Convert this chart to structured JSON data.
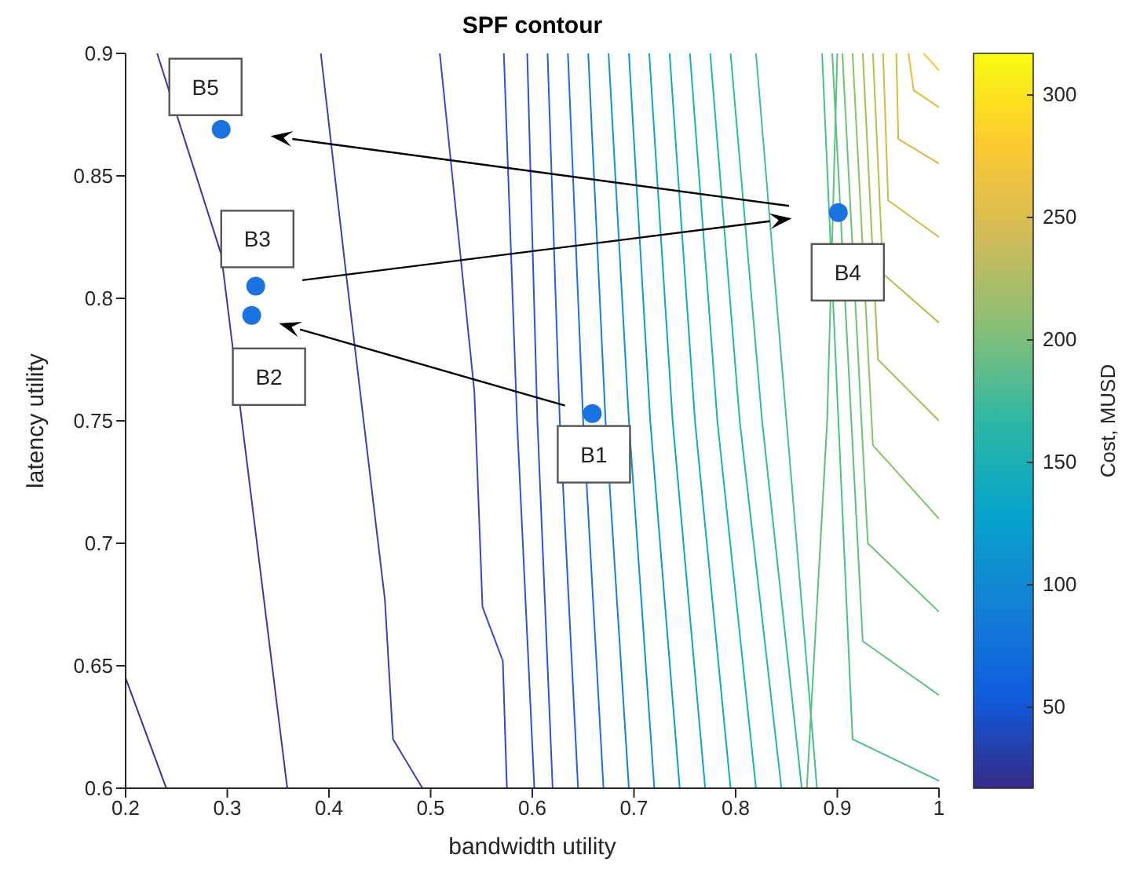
{
  "chart_data": {
    "type": "scatter",
    "title": "SPF contour",
    "xlabel": "bandwidth utility",
    "ylabel": "latency utility",
    "clabel": "Cost, MUSD",
    "xlim": [
      0.2,
      1
    ],
    "ylim": [
      0.6,
      0.9
    ],
    "xticks": [
      0.2,
      0.3,
      0.4,
      0.5,
      0.6,
      0.7,
      0.8,
      0.9,
      1
    ],
    "yticks": [
      0.6,
      0.65,
      0.7,
      0.75,
      0.8,
      0.85,
      0.9
    ],
    "clim": [
      17,
      317
    ],
    "cticks": [
      50,
      100,
      150,
      200,
      250,
      300
    ],
    "series": [
      {
        "type": "line",
        "color": "#3b2f96",
        "x": [
          0.2,
          0.24
        ],
        "values": [
          0.645,
          0.6
        ]
      },
      {
        "type": "line",
        "color": "#3d35a8",
        "x": [
          0.231,
          0.294,
          0.359
        ],
        "values": [
          0.9,
          0.818,
          0.6
        ]
      },
      {
        "type": "line",
        "color": "#3b3fb8",
        "x": [
          0.392,
          0.416,
          0.455,
          0.463,
          0.492
        ],
        "values": [
          0.9,
          0.813,
          0.677,
          0.62,
          0.6
        ]
      },
      {
        "type": "line",
        "color": "#3448cc",
        "x": [
          0.509,
          0.543,
          0.551,
          0.571,
          0.575
        ],
        "values": [
          0.9,
          0.762,
          0.674,
          0.652,
          0.6
        ]
      },
      {
        "type": "line",
        "color": "#2c50dc",
        "x": [
          0.572,
          0.585,
          0.602
        ],
        "values": [
          0.9,
          0.75,
          0.6
        ]
      },
      {
        "type": "line",
        "color": "#2852e0",
        "x": [
          0.595,
          0.605,
          0.62
        ],
        "values": [
          0.9,
          0.75,
          0.6
        ]
      },
      {
        "type": "line",
        "color": "#1f62e6",
        "x": [
          0.615,
          0.627,
          0.645
        ],
        "values": [
          0.9,
          0.75,
          0.6
        ]
      },
      {
        "type": "line",
        "color": "#1a70e4",
        "x": [
          0.635,
          0.65,
          0.67
        ],
        "values": [
          0.9,
          0.75,
          0.6
        ]
      },
      {
        "type": "line",
        "color": "#1580dc",
        "x": [
          0.655,
          0.672,
          0.695
        ],
        "values": [
          0.9,
          0.75,
          0.6
        ]
      },
      {
        "type": "line",
        "color": "#118ed6",
        "x": [
          0.675,
          0.695,
          0.72
        ],
        "values": [
          0.9,
          0.75,
          0.6
        ]
      },
      {
        "type": "line",
        "color": "#0d9ad0",
        "x": [
          0.695,
          0.716,
          0.745
        ],
        "values": [
          0.9,
          0.75,
          0.6
        ]
      },
      {
        "type": "line",
        "color": "#0aa5c8",
        "x": [
          0.715,
          0.738,
          0.77
        ],
        "values": [
          0.9,
          0.75,
          0.6
        ]
      },
      {
        "type": "line",
        "color": "#0cadbc",
        "x": [
          0.735,
          0.76,
          0.795
        ],
        "values": [
          0.9,
          0.75,
          0.6
        ]
      },
      {
        "type": "line",
        "color": "#14b4b0",
        "x": [
          0.755,
          0.782,
          0.82
        ],
        "values": [
          0.9,
          0.75,
          0.6
        ]
      },
      {
        "type": "line",
        "color": "#22b9a4",
        "x": [
          0.775,
          0.804,
          0.845
        ],
        "values": [
          0.9,
          0.75,
          0.6
        ]
      },
      {
        "type": "line",
        "color": "#30bc98",
        "x": [
          0.795,
          0.826,
          0.865
        ],
        "values": [
          0.9,
          0.75,
          0.6
        ]
      },
      {
        "type": "line",
        "color": "#40bf8c",
        "x": [
          0.82,
          0.85,
          0.88
        ],
        "values": [
          0.9,
          0.75,
          0.6
        ]
      },
      {
        "type": "line",
        "color": "#5ac27a",
        "x": [
          0.9,
          0.89,
          0.87
        ],
        "values": [
          0.9,
          0.75,
          0.6
        ]
      },
      {
        "type": "line",
        "color": "#48c184",
        "x": [
          0.885,
          0.915,
          1
        ],
        "values": [
          0.9,
          0.62,
          0.603
        ]
      },
      {
        "type": "line",
        "color": "#5ac27a",
        "x": [
          0.895,
          0.925,
          1
        ],
        "values": [
          0.9,
          0.66,
          0.638
        ]
      },
      {
        "type": "line",
        "color": "#6cc46e",
        "x": [
          0.905,
          0.93,
          1
        ],
        "values": [
          0.9,
          0.7,
          0.672
        ]
      },
      {
        "type": "line",
        "color": "#84c462",
        "x": [
          0.915,
          0.935,
          1
        ],
        "values": [
          0.9,
          0.74,
          0.71
        ]
      },
      {
        "type": "line",
        "color": "#9cc356",
        "x": [
          0.925,
          0.94,
          1
        ],
        "values": [
          0.9,
          0.775,
          0.75
        ]
      },
      {
        "type": "line",
        "color": "#b4c04a",
        "x": [
          0.935,
          0.945,
          1
        ],
        "values": [
          0.9,
          0.81,
          0.79
        ]
      },
      {
        "type": "line",
        "color": "#cabd40",
        "x": [
          0.945,
          0.95,
          1
        ],
        "values": [
          0.9,
          0.84,
          0.825
        ]
      },
      {
        "type": "line",
        "color": "#dcb93a",
        "x": [
          0.958,
          0.96,
          1
        ],
        "values": [
          0.9,
          0.865,
          0.855
        ]
      },
      {
        "type": "line",
        "color": "#efb735",
        "x": [
          0.97,
          0.975,
          1
        ],
        "values": [
          0.9,
          0.885,
          0.878
        ]
      },
      {
        "type": "line",
        "color": "#fbc62e",
        "x": [
          0.985,
          1
        ],
        "values": [
          0.9,
          0.893
        ]
      },
      {
        "marker": "circle",
        "color": "#1a73e0",
        "x": [
          0.659,
          0.324,
          0.328,
          0.901,
          0.294
        ],
        "values": [
          0.753,
          0.793,
          0.805,
          0.835,
          0.869
        ]
      }
    ],
    "annotations": [
      {
        "text": "B1",
        "x": 0.659,
        "y": 0.753
      },
      {
        "text": "B2",
        "x": 0.324,
        "y": 0.793
      },
      {
        "text": "B3",
        "x": 0.328,
        "y": 0.805
      },
      {
        "text": "B4",
        "x": 0.901,
        "y": 0.835
      },
      {
        "text": "B5",
        "x": 0.294,
        "y": 0.869
      }
    ]
  }
}
